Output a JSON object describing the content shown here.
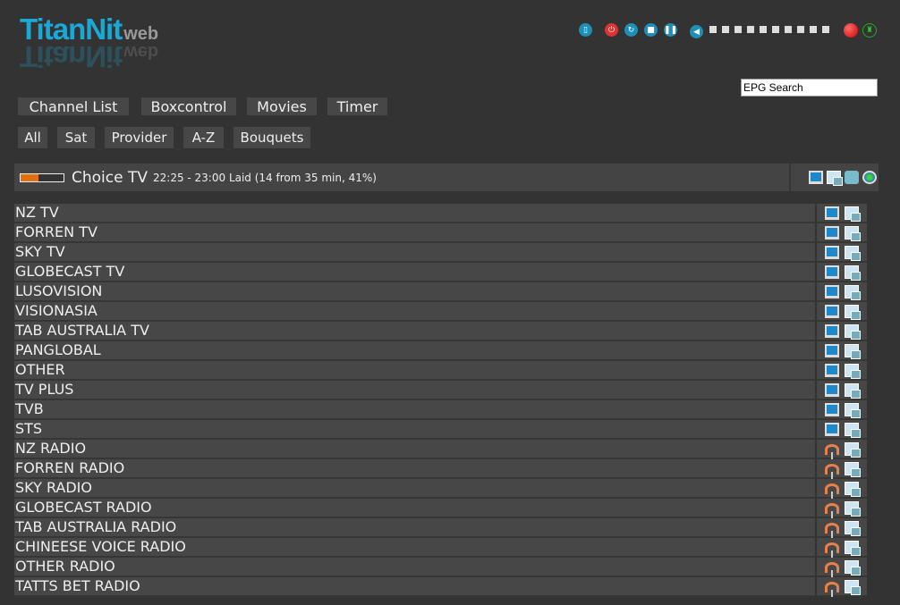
{
  "logo": {
    "title": "TitanNit",
    "suffix": "web"
  },
  "controls": [
    "remote-icon",
    "power-icon",
    "restart-icon",
    "stop-icon",
    "pause-icon",
    "volume-icon"
  ],
  "volume": {
    "steps": 10,
    "level": 0
  },
  "epg_search": {
    "value": "EPG Search"
  },
  "nav": [
    "Channel List",
    "Boxcontrol",
    "Movies",
    "Timer"
  ],
  "filters": [
    "All",
    "Sat",
    "Provider",
    "A-Z",
    "Bouquets"
  ],
  "current": {
    "channel": "Choice TV",
    "info": "22:25 - 23:00 Laid (14 from 35 min, 41%)",
    "progress": 41,
    "progress_color": "#e07010"
  },
  "bouquets": [
    {
      "name": "NZ TV",
      "type": "tv"
    },
    {
      "name": "FORREN TV",
      "type": "tv"
    },
    {
      "name": "SKY TV",
      "type": "tv"
    },
    {
      "name": "GLOBECAST TV",
      "type": "tv"
    },
    {
      "name": "LUSOVISION",
      "type": "tv"
    },
    {
      "name": "VISIONASIA",
      "type": "tv"
    },
    {
      "name": "TAB AUSTRALIA TV",
      "type": "tv"
    },
    {
      "name": "PANGLOBAL",
      "type": "tv"
    },
    {
      "name": "OTHER",
      "type": "tv"
    },
    {
      "name": "TV PLUS",
      "type": "tv"
    },
    {
      "name": "TVB",
      "type": "tv"
    },
    {
      "name": "STS",
      "type": "tv"
    },
    {
      "name": "NZ RADIO",
      "type": "radio"
    },
    {
      "name": "FORREN RADIO",
      "type": "radio"
    },
    {
      "name": "SKY RADIO",
      "type": "radio"
    },
    {
      "name": "GLOBECAST RADIO",
      "type": "radio"
    },
    {
      "name": "TAB AUSTRALIA RADIO",
      "type": "radio"
    },
    {
      "name": "CHINEESE VOICE RADIO",
      "type": "radio"
    },
    {
      "name": "OTHER RADIO",
      "type": "radio"
    },
    {
      "name": "TATTS BET RADIO",
      "type": "radio"
    }
  ]
}
